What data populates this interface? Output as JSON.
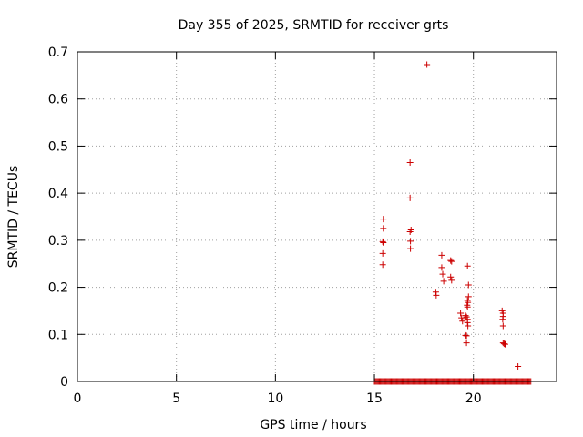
{
  "chart_data": {
    "type": "scatter",
    "title": "Day 355 of 2025, SRMTID for receiver grts",
    "xlabel": "GPS time / hours",
    "ylabel": "SRMTID / TECUs",
    "xlim": [
      0,
      24.2
    ],
    "ylim": [
      0,
      0.7
    ],
    "xticks": [
      0,
      5,
      10,
      15,
      20
    ],
    "xtick_labels": [
      "0",
      "5",
      "10",
      "15",
      "20"
    ],
    "yticks": [
      0,
      0.1,
      0.2,
      0.3,
      0.4,
      0.5,
      0.6,
      0.7
    ],
    "ytick_labels": [
      "0",
      "0.1",
      "0.2",
      "0.3",
      "0.4",
      "0.5",
      "0.6",
      "0.7"
    ],
    "grid": true,
    "marker": "+",
    "color": "#cc0000",
    "zero_band": {
      "x_from": 15.0,
      "x_to": 22.9,
      "step": 0.05,
      "y": 0
    },
    "series": [
      {
        "name": "SRMTID",
        "points": [
          [
            15.45,
            0.345
          ],
          [
            15.45,
            0.325
          ],
          [
            15.42,
            0.297
          ],
          [
            15.45,
            0.295
          ],
          [
            15.42,
            0.272
          ],
          [
            15.42,
            0.248
          ],
          [
            16.8,
            0.465
          ],
          [
            16.8,
            0.39
          ],
          [
            16.85,
            0.322
          ],
          [
            16.8,
            0.318
          ],
          [
            16.82,
            0.298
          ],
          [
            16.82,
            0.282
          ],
          [
            17.65,
            0.673
          ],
          [
            18.1,
            0.19
          ],
          [
            18.12,
            0.183
          ],
          [
            18.4,
            0.268
          ],
          [
            18.4,
            0.242
          ],
          [
            18.45,
            0.228
          ],
          [
            18.5,
            0.213
          ],
          [
            18.85,
            0.257
          ],
          [
            18.9,
            0.255
          ],
          [
            18.85,
            0.222
          ],
          [
            18.9,
            0.215
          ],
          [
            19.35,
            0.145
          ],
          [
            19.4,
            0.135
          ],
          [
            19.45,
            0.128
          ],
          [
            19.6,
            0.14
          ],
          [
            19.65,
            0.137
          ],
          [
            19.7,
            0.132
          ],
          [
            19.7,
            0.125
          ],
          [
            19.72,
            0.118
          ],
          [
            19.6,
            0.098
          ],
          [
            19.65,
            0.097
          ],
          [
            19.65,
            0.082
          ],
          [
            19.7,
            0.245
          ],
          [
            19.75,
            0.205
          ],
          [
            19.75,
            0.18
          ],
          [
            19.7,
            0.172
          ],
          [
            19.72,
            0.168
          ],
          [
            19.68,
            0.162
          ],
          [
            19.7,
            0.158
          ],
          [
            21.45,
            0.15
          ],
          [
            21.5,
            0.145
          ],
          [
            21.5,
            0.138
          ],
          [
            21.48,
            0.132
          ],
          [
            21.5,
            0.118
          ],
          [
            21.5,
            0.082
          ],
          [
            21.55,
            0.08
          ],
          [
            21.6,
            0.079
          ],
          [
            22.25,
            0.032
          ]
        ]
      }
    ]
  }
}
